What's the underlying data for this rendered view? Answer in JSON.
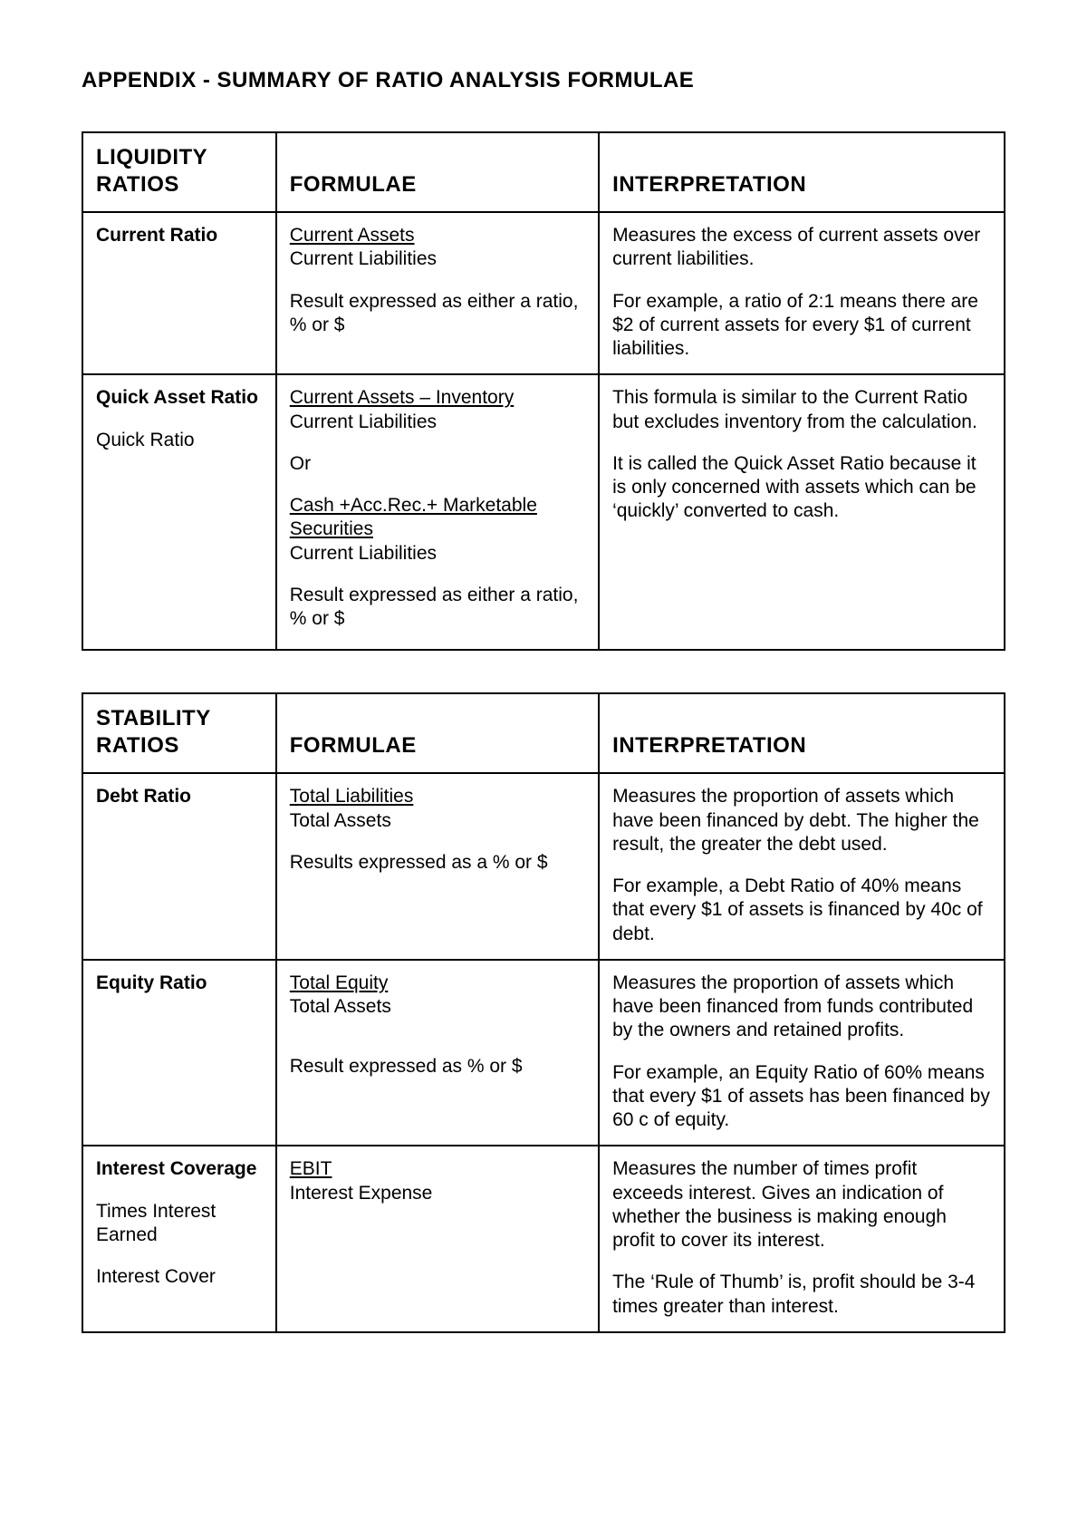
{
  "title": "APPENDIX - SUMMARY OF RATIO ANALYSIS FORMULAE",
  "columns": {
    "name": "",
    "formulae": "FORMULAE",
    "interpretation": "INTERPRETATION"
  },
  "sections": [
    {
      "heading": "LIQUIDITY RATIOS",
      "rows": [
        {
          "name": "Current Ratio",
          "aliases": [],
          "formula": {
            "frac1_num": "Current Assets",
            "frac1_den": "Current Liabilities",
            "note": "Result expressed as either a ratio, % or $"
          },
          "interpretation": {
            "p1": "Measures the excess of current assets over current liabilities.",
            "p2": "For example, a ratio of 2:1 means there are $2 of current assets for every $1 of current liabilities."
          }
        },
        {
          "name": "Quick Asset Ratio",
          "aliases": [
            "Quick Ratio"
          ],
          "formula": {
            "frac1_num": "Current Assets – Inventory",
            "frac1_den": "Current Liabilities",
            "or": "Or",
            "frac2_num_a": "Cash +Acc.Rec.+ Marketable ",
            "frac2_num_b": "Securities",
            "frac2_den": "Current Liabilities",
            "note": "Result expressed as either a ratio, % or $"
          },
          "interpretation": {
            "p1": "This formula is similar to the Current Ratio but excludes inventory from the calculation.",
            "p2": "It is called the Quick Asset Ratio because it is only concerned with assets which can be ‘quickly’ converted to cash."
          }
        }
      ]
    },
    {
      "heading": "STABILITY RATIOS",
      "rows": [
        {
          "name": "Debt Ratio",
          "aliases": [],
          "formula": {
            "frac1_num": "Total Liabilities",
            "frac1_den": "Total Assets",
            "note": "Results expressed as a % or $"
          },
          "interpretation": {
            "p1": "Measures the proportion of assets which have been financed by debt. The higher the result, the greater the debt used.",
            "p2": "For example, a Debt Ratio of 40% means that every $1 of assets is financed by 40c of debt."
          }
        },
        {
          "name": "Equity Ratio",
          "aliases": [],
          "formula": {
            "frac1_num": "Total  Equity",
            "frac1_den": "Total Assets",
            "note": "Result expressed as % or $",
            "extra_gap": true
          },
          "interpretation": {
            "p1": "Measures the proportion of assets which have been financed from funds contributed by the owners and retained profits.",
            "p2": "For example, an Equity Ratio of 60% means that every $1 of assets has been financed by 60 c of equity."
          }
        },
        {
          "name": "Interest Coverage",
          "aliases": [
            "Times Interest Earned",
            "Interest Cover"
          ],
          "formula": {
            "frac1_num": "EBIT",
            "frac1_den": "Interest Expense"
          },
          "interpretation": {
            "p1": "Measures the number of times profit exceeds interest. Gives an indication of whether the business is making enough profit to cover its interest.",
            "p2": "The ‘Rule of Thumb’ is, profit should be 3-4 times greater than interest."
          }
        }
      ]
    }
  ]
}
